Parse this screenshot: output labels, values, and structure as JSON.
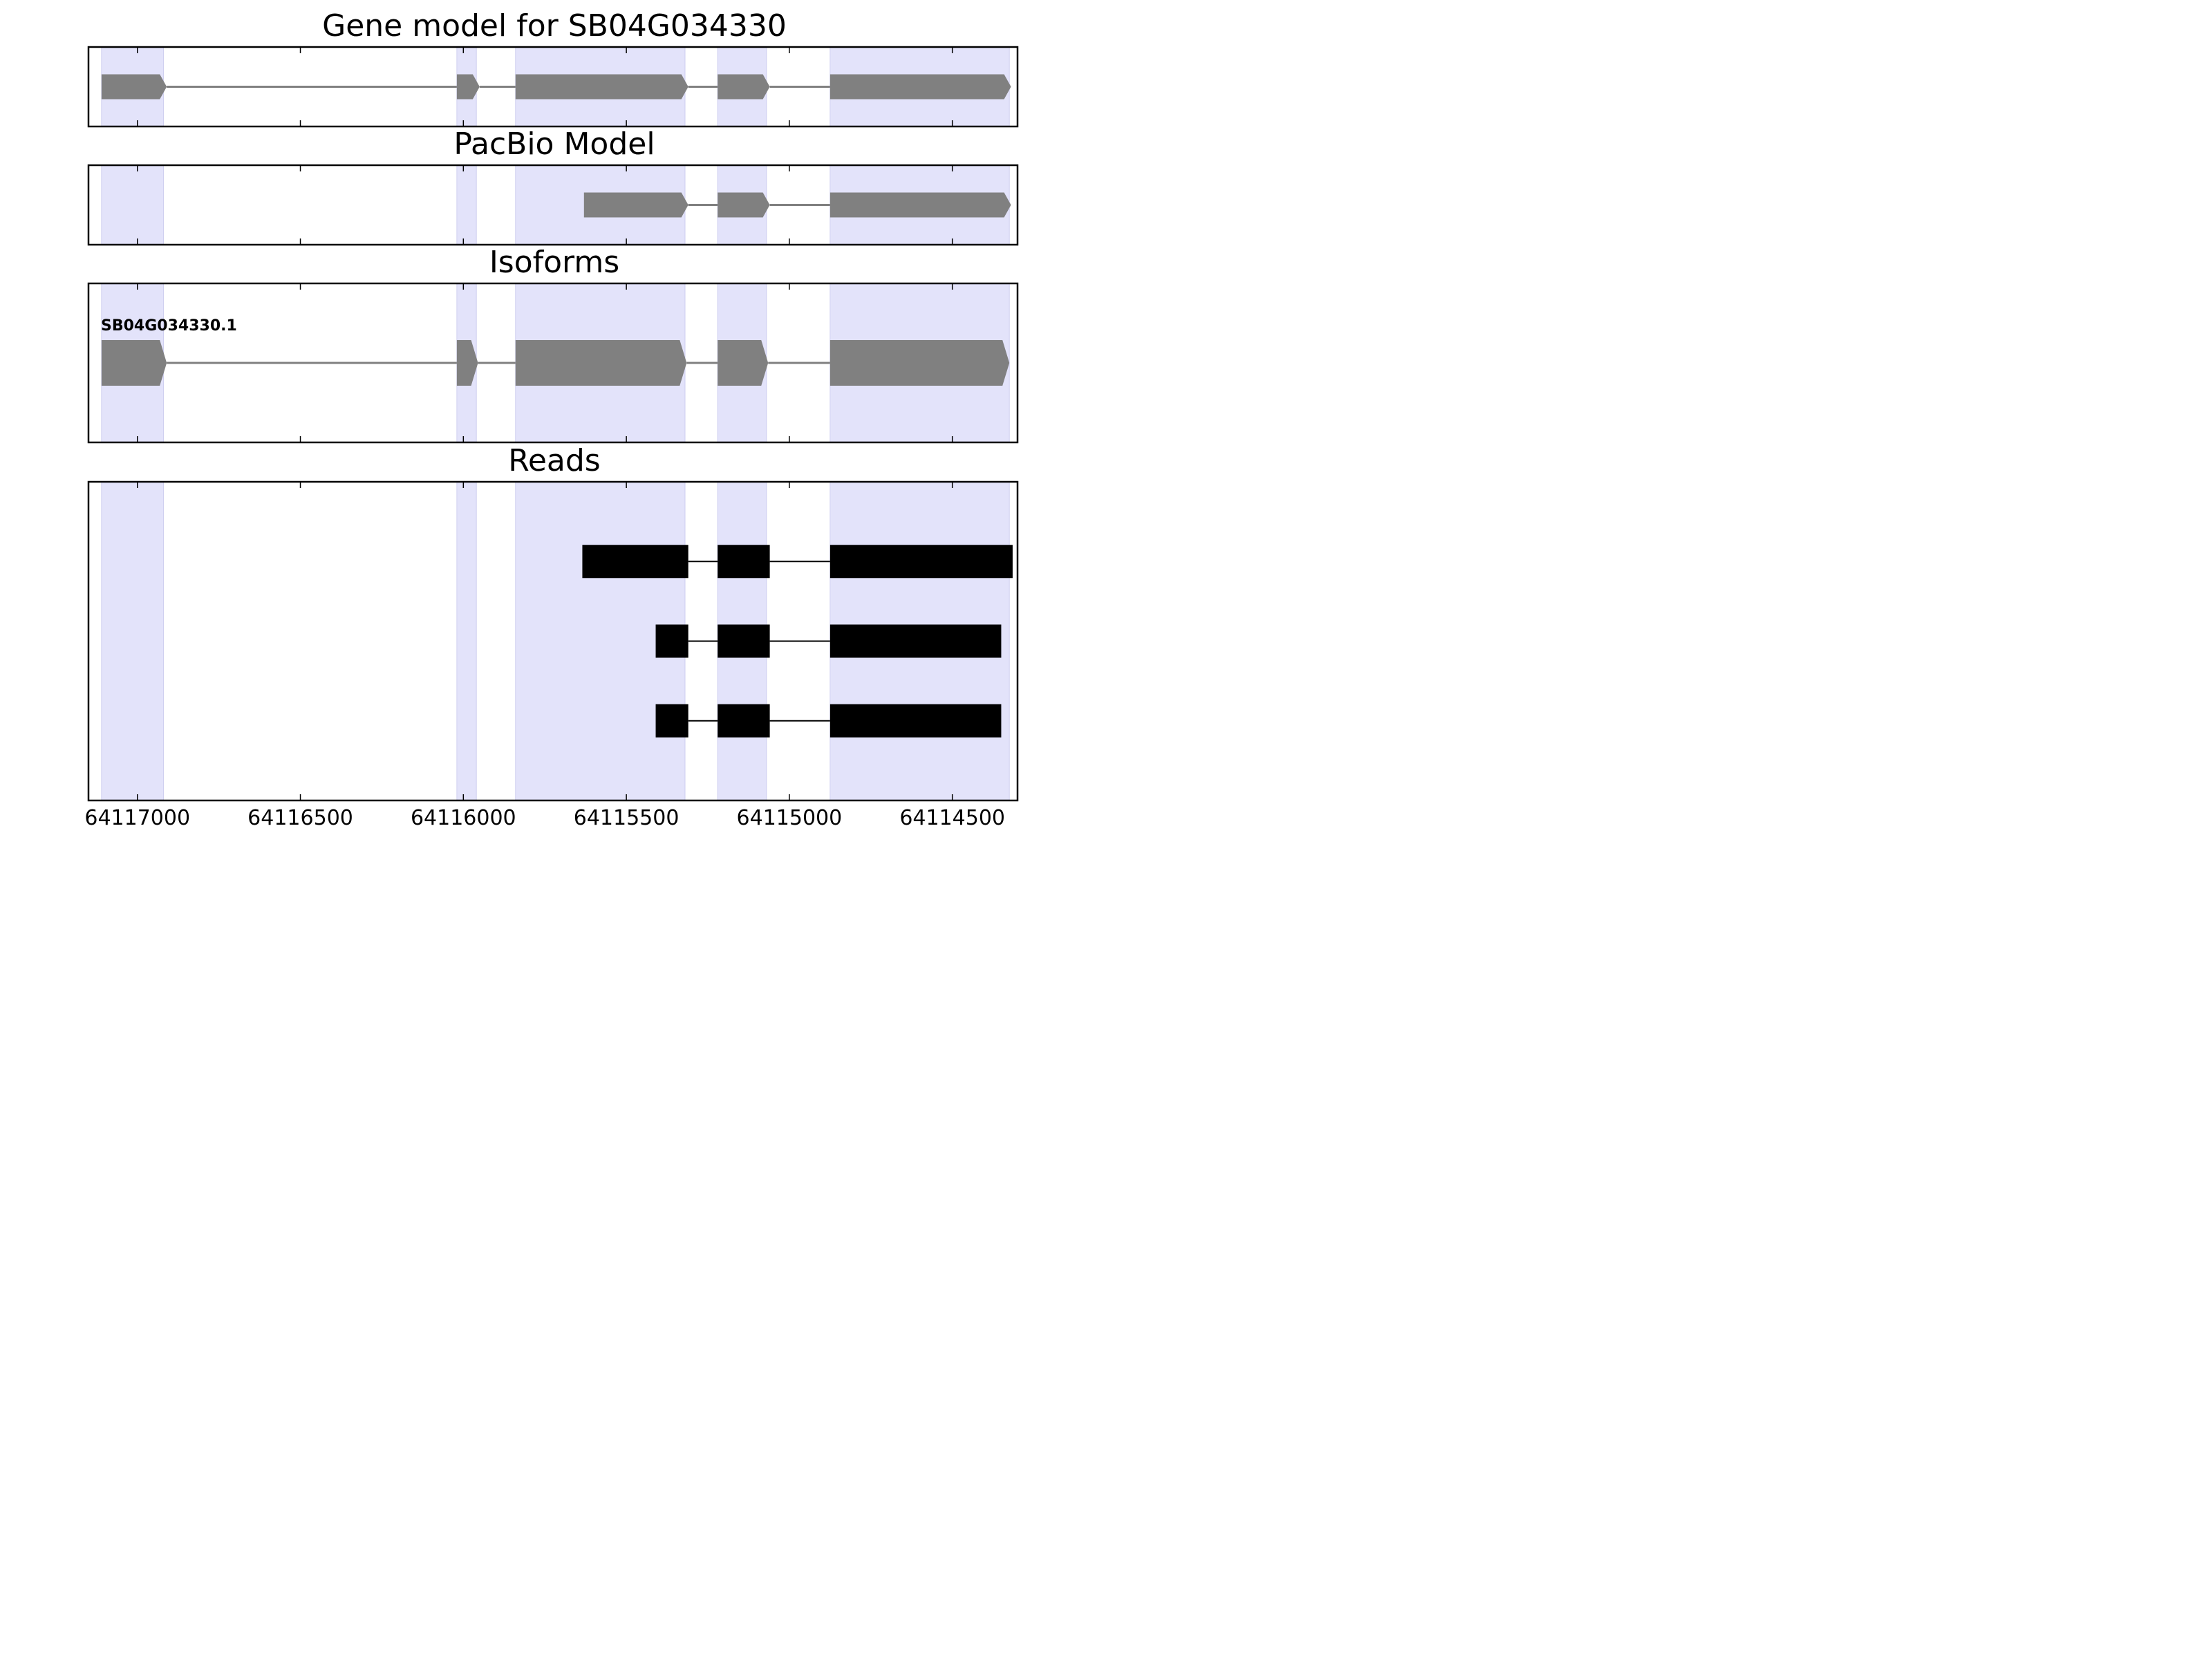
{
  "chart_data": {
    "type": "gene-model",
    "x_axis": {
      "range": [
        64117150,
        64114300
      ],
      "reversed": true,
      "ticks": [
        64117000,
        64116500,
        64116000,
        64115500,
        64115000,
        64114500
      ],
      "tick_labels": [
        "64117000",
        "64116500",
        "64116000",
        "64115500",
        "64115000",
        "64114500"
      ]
    },
    "colors": {
      "highlight": "#e3e3fa",
      "highlight_edge": "#cfcff0",
      "model": "#808080",
      "read": "#000000",
      "frame": "#000000"
    },
    "highlight_regions": [
      [
        64117110,
        64116920
      ],
      [
        64116020,
        64115960
      ],
      [
        64115840,
        64115320
      ],
      [
        64115220,
        64115070
      ],
      [
        64114875,
        64114325
      ]
    ],
    "panels": [
      {
        "title": "Gene model for SB04G034330",
        "style": "model",
        "tracks": [
          {
            "label": "",
            "exons": [
              [
                64117110,
                64116910
              ],
              [
                64116020,
                64115950
              ],
              [
                64115840,
                64115310
              ],
              [
                64115220,
                64115060
              ],
              [
                64114875,
                64114320
              ]
            ]
          }
        ]
      },
      {
        "title": "PacBio Model",
        "style": "model",
        "tracks": [
          {
            "label": "",
            "exons": [
              [
                64115630,
                64115310
              ],
              [
                64115220,
                64115060
              ],
              [
                64114875,
                64114320
              ]
            ]
          }
        ]
      },
      {
        "title": "Isoforms",
        "style": "model",
        "tracks": [
          {
            "label": "SB04G034330.1",
            "exons": [
              [
                64117110,
                64116910
              ],
              [
                64116020,
                64115955
              ],
              [
                64115840,
                64115315
              ],
              [
                64115220,
                64115065
              ],
              [
                64114875,
                64114325
              ]
            ]
          }
        ]
      },
      {
        "title": "Reads",
        "style": "read",
        "tracks": [
          {
            "label": "",
            "exons": [
              [
                64115635,
                64115310
              ],
              [
                64115220,
                64115060
              ],
              [
                64114875,
                64114315
              ]
            ]
          },
          {
            "label": "",
            "exons": [
              [
                64115410,
                64115310
              ],
              [
                64115220,
                64115060
              ],
              [
                64114875,
                64114350
              ]
            ]
          },
          {
            "label": "",
            "exons": [
              [
                64115410,
                64115310
              ],
              [
                64115220,
                64115060
              ],
              [
                64114875,
                64114350
              ]
            ]
          }
        ]
      }
    ]
  }
}
